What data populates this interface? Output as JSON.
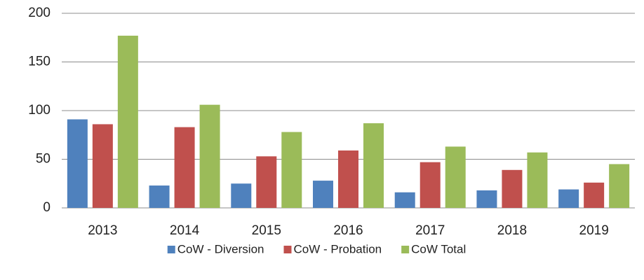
{
  "chart_data": {
    "type": "bar",
    "categories": [
      "2013",
      "2014",
      "2015",
      "2016",
      "2017",
      "2018",
      "2019"
    ],
    "series": [
      {
        "name": "CoW - Diversion",
        "color": "#4f81bd",
        "values": [
          91,
          23,
          25,
          28,
          16,
          18,
          19
        ]
      },
      {
        "name": "CoW - Probation",
        "color": "#c0504d",
        "values": [
          86,
          83,
          53,
          59,
          47,
          39,
          26
        ]
      },
      {
        "name": "CoW Total",
        "color": "#9bbb59",
        "values": [
          177,
          106,
          78,
          87,
          63,
          57,
          45
        ]
      }
    ],
    "ylim": [
      0,
      200
    ],
    "yticks": [
      0,
      50,
      100,
      150,
      200
    ],
    "grid": true,
    "legend": "bottom"
  }
}
